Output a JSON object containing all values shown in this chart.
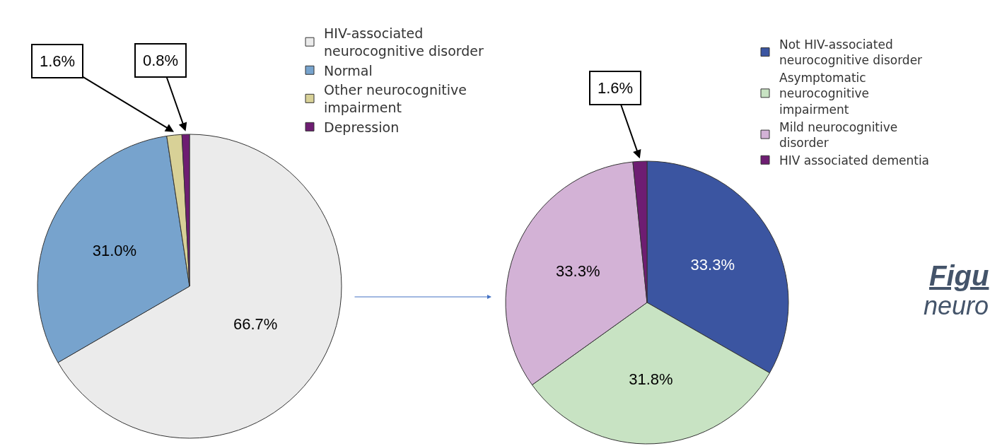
{
  "chart_data": [
    {
      "type": "pie",
      "categories": [
        "HIV-associated neurocognitive disorder",
        "Normal",
        "Other neurocognitive impairment",
        "Depression"
      ],
      "values": [
        66.7,
        31.0,
        1.6,
        0.8
      ],
      "value_labels": [
        "66.7%",
        "31.0%",
        "1.6%",
        "0.8%"
      ],
      "colors": [
        "#ebebeb",
        "#77a3cd",
        "#d8d197",
        "#6e1d72"
      ],
      "legend": "top right"
    },
    {
      "type": "pie",
      "categories": [
        "Not HIV-associated neurocognitive disorder",
        "Asymptomatic neurocognitive impairment",
        "Mild neurocognitive disorder",
        "HIV associated dementia"
      ],
      "values": [
        33.3,
        31.8,
        33.3,
        1.6
      ],
      "value_labels": [
        "33.3%",
        "31.8%",
        "33.3%",
        "1.6%"
      ],
      "colors": [
        "#3b55a1",
        "#c8e3c3",
        "#d3b2d6",
        "#6e1d72"
      ],
      "legend": "top right",
      "annotations": [
        "Figu",
        "neuro"
      ]
    }
  ]
}
